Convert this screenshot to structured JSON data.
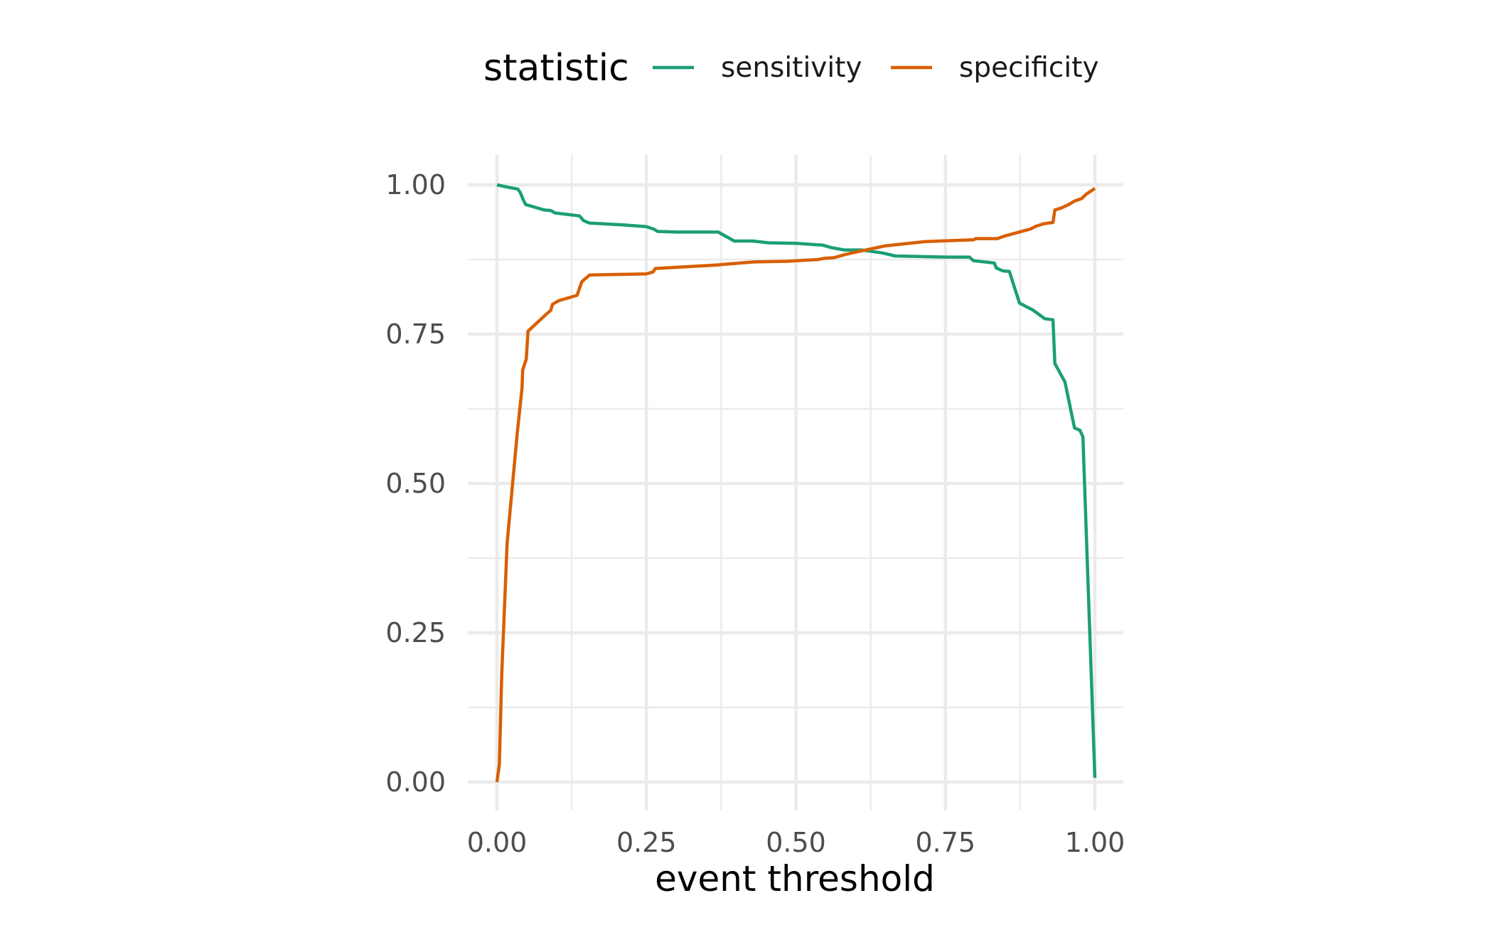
{
  "chart_data": {
    "type": "line",
    "title": "",
    "xlabel": "event threshold",
    "ylabel": "",
    "xlim": [
      0,
      1
    ],
    "ylim": [
      0,
      1
    ],
    "x_ticks": [
      0,
      0.25,
      0.5,
      0.75,
      1
    ],
    "y_ticks": [
      0,
      0.25,
      0.5,
      0.75,
      1
    ],
    "x_tick_labels": [
      "0.00",
      "0.25",
      "0.50",
      "0.75",
      "1.00"
    ],
    "y_tick_labels": [
      "0.00",
      "0.25",
      "0.50",
      "0.75",
      "1.00"
    ],
    "grid": true,
    "legend": {
      "title": "statistic",
      "position": "top"
    },
    "series": [
      {
        "name": "sensitivity",
        "color": "#1B9E77",
        "x": [
          0.0,
          0.019,
          0.035,
          0.039,
          0.044,
          0.048,
          0.065,
          0.079,
          0.09,
          0.097,
          0.122,
          0.138,
          0.145,
          0.155,
          0.21,
          0.25,
          0.262,
          0.269,
          0.302,
          0.37,
          0.397,
          0.428,
          0.454,
          0.501,
          0.545,
          0.559,
          0.581,
          0.61,
          0.645,
          0.666,
          0.75,
          0.79,
          0.797,
          0.832,
          0.835,
          0.846,
          0.857,
          0.874,
          0.897,
          0.916,
          0.93,
          0.933,
          0.95,
          0.966,
          0.975,
          0.98,
          1.0
        ],
        "values": [
          1.0,
          0.996,
          0.993,
          0.987,
          0.975,
          0.967,
          0.962,
          0.958,
          0.957,
          0.953,
          0.95,
          0.948,
          0.94,
          0.936,
          0.933,
          0.93,
          0.926,
          0.922,
          0.921,
          0.921,
          0.906,
          0.906,
          0.903,
          0.902,
          0.899,
          0.895,
          0.891,
          0.891,
          0.886,
          0.881,
          0.879,
          0.879,
          0.873,
          0.869,
          0.861,
          0.856,
          0.855,
          0.802,
          0.79,
          0.776,
          0.774,
          0.701,
          0.67,
          0.593,
          0.589,
          0.578,
          0.007
        ]
      },
      {
        "name": "specificity",
        "color": "#D95F02",
        "x": [
          0.0,
          0.004,
          0.008,
          0.017,
          0.034,
          0.042,
          0.043,
          0.049,
          0.052,
          0.081,
          0.09,
          0.093,
          0.103,
          0.134,
          0.142,
          0.155,
          0.25,
          0.261,
          0.265,
          0.37,
          0.38,
          0.43,
          0.485,
          0.537,
          0.548,
          0.563,
          0.578,
          0.585,
          0.603,
          0.65,
          0.717,
          0.797,
          0.801,
          0.837,
          0.848,
          0.87,
          0.892,
          0.902,
          0.915,
          0.93,
          0.933,
          0.943,
          0.958,
          0.966,
          0.978,
          0.985,
          1.0
        ],
        "values": [
          0.0,
          0.03,
          0.18,
          0.4,
          0.585,
          0.66,
          0.69,
          0.708,
          0.755,
          0.782,
          0.79,
          0.8,
          0.806,
          0.815,
          0.838,
          0.849,
          0.851,
          0.854,
          0.86,
          0.866,
          0.867,
          0.871,
          0.872,
          0.875,
          0.877,
          0.878,
          0.882,
          0.884,
          0.888,
          0.898,
          0.905,
          0.908,
          0.91,
          0.91,
          0.914,
          0.92,
          0.926,
          0.931,
          0.935,
          0.937,
          0.958,
          0.961,
          0.968,
          0.973,
          0.977,
          0.984,
          0.994
        ]
      }
    ]
  }
}
